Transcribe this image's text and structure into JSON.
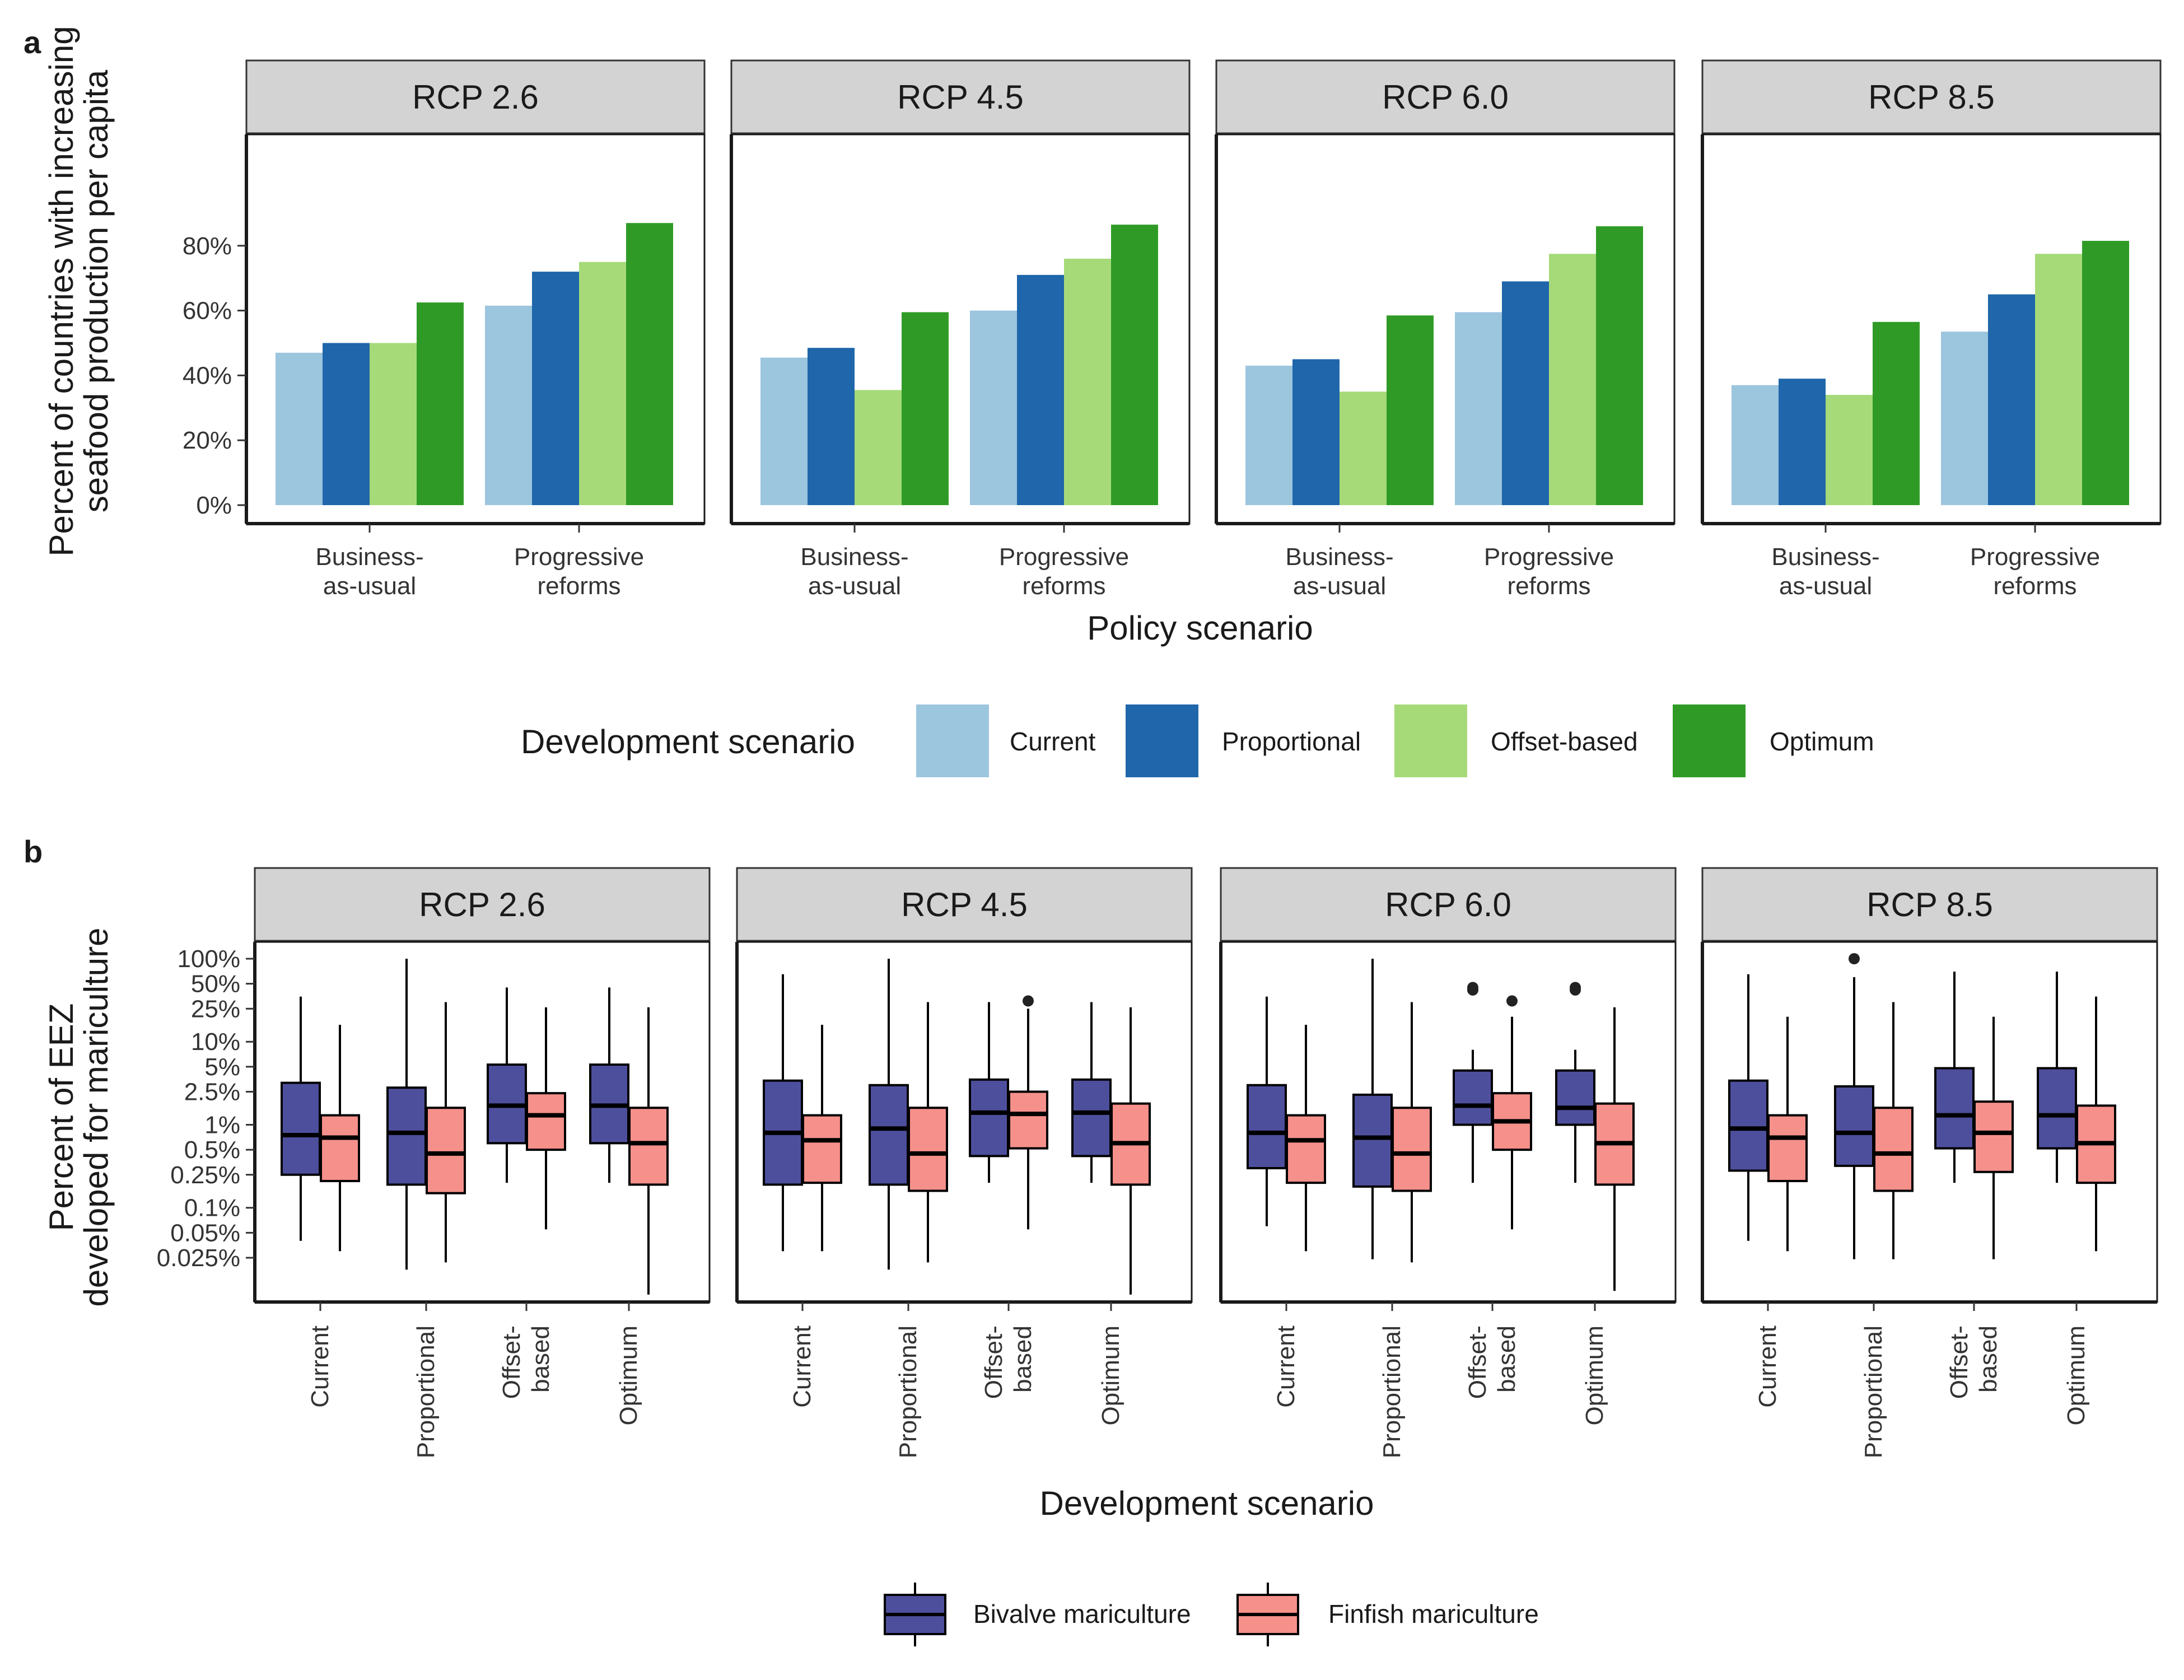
{
  "panel_a_letter": "a",
  "panel_b_letter": "b",
  "colors": {
    "strip_bg": "#d3d3d3",
    "Current": "#9cc5de",
    "Proportional": "#1f66aa",
    "Offset-based": "#a6da79",
    "Optimum": "#2f9b26",
    "bivalve": "#4e4f9c",
    "finfish": "#f5908b"
  },
  "chart_data": [
    {
      "type": "bar",
      "facets": [
        "RCP 2.6",
        "RCP 4.5",
        "RCP 6.0",
        "RCP 8.5"
      ],
      "categories": [
        "Business-\nas-usual",
        "Progressive\nreforms"
      ],
      "series_names": [
        "Current",
        "Proportional",
        "Offset-based",
        "Optimum"
      ],
      "values": {
        "RCP 2.6": {
          "Current": [
            47,
            61.5
          ],
          "Proportional": [
            50,
            72
          ],
          "Offset-based": [
            50,
            75
          ],
          "Optimum": [
            62.5,
            87
          ]
        },
        "RCP 4.5": {
          "Current": [
            45.5,
            60
          ],
          "Proportional": [
            48.5,
            71
          ],
          "Offset-based": [
            35.5,
            76
          ],
          "Optimum": [
            59.5,
            86.5
          ]
        },
        "RCP 6.0": {
          "Current": [
            43,
            59.5
          ],
          "Proportional": [
            45,
            69
          ],
          "Offset-based": [
            35,
            77.5
          ],
          "Optimum": [
            58.5,
            86
          ]
        },
        "RCP 8.5": {
          "Current": [
            37,
            53.5
          ],
          "Proportional": [
            39,
            65
          ],
          "Offset-based": [
            34,
            77.5
          ],
          "Optimum": [
            56.5,
            81.5
          ]
        }
      },
      "ylim": [
        0,
        100
      ],
      "yticks": [
        0,
        20,
        40,
        60,
        80
      ],
      "ytick_labels": [
        "0%",
        "20%",
        "40%",
        "60%",
        "80%"
      ],
      "xlabel": "Policy scenario",
      "ylabel": "Percent of countries with increasing\nseafood production per capita",
      "legend": {
        "title": "Development scenario",
        "position": "bottom",
        "entries": [
          "Current",
          "Proportional",
          "Offset-based",
          "Optimum"
        ]
      },
      "grid": false
    },
    {
      "type": "box",
      "facets": [
        "RCP 2.6",
        "RCP 4.5",
        "RCP 6.0",
        "RCP 8.5"
      ],
      "categories": [
        "Current",
        "Proportional",
        "Offset-\nbased",
        "Optimum"
      ],
      "y_scale": "log",
      "yticks": [
        100,
        50,
        25,
        10,
        5,
        2.5,
        1,
        0.5,
        0.25,
        0.1,
        0.05,
        0.025
      ],
      "ytick_labels": [
        "100%",
        "50%",
        "25%",
        "10%",
        "5%",
        "2.5%",
        "1%",
        "0.5%",
        "0.25%",
        "0.1%",
        "0.05%",
        "0.025%"
      ],
      "xlabel": "Development scenario",
      "ylabel": "Percent of EEZ\ndeveloped for mariculture",
      "legend": {
        "position": "bottom",
        "entries": [
          "Bivalve mariculture",
          "Finfish mariculture"
        ]
      },
      "series_keys": [
        "bivalve",
        "finfish"
      ],
      "boxes": {
        "RCP 2.6": {
          "bivalve": [
            {
              "low": 0.04,
              "q1": 0.25,
              "median": 0.75,
              "q3": 3.2,
              "high": 35,
              "outliers": []
            },
            {
              "low": 0.018,
              "q1": 0.19,
              "median": 0.8,
              "q3": 2.8,
              "high": 100,
              "outliers": []
            },
            {
              "low": 0.2,
              "q1": 0.6,
              "median": 1.7,
              "q3": 5.3,
              "high": 45,
              "outliers": []
            },
            {
              "low": 0.2,
              "q1": 0.6,
              "median": 1.7,
              "q3": 5.3,
              "high": 45,
              "outliers": []
            }
          ],
          "finfish": [
            {
              "low": 0.03,
              "q1": 0.21,
              "median": 0.7,
              "q3": 1.3,
              "high": 16,
              "outliers": []
            },
            {
              "low": 0.022,
              "q1": 0.15,
              "median": 0.45,
              "q3": 1.6,
              "high": 30,
              "outliers": []
            },
            {
              "low": 0.055,
              "q1": 0.5,
              "median": 1.3,
              "q3": 2.4,
              "high": 26,
              "outliers": []
            },
            {
              "low": 0.009,
              "q1": 0.19,
              "median": 0.6,
              "q3": 1.6,
              "high": 26,
              "outliers": []
            }
          ]
        },
        "RCP 4.5": {
          "bivalve": [
            {
              "low": 0.03,
              "q1": 0.19,
              "median": 0.8,
              "q3": 3.4,
              "high": 65,
              "outliers": []
            },
            {
              "low": 0.018,
              "q1": 0.19,
              "median": 0.9,
              "q3": 3.0,
              "high": 100,
              "outliers": []
            },
            {
              "low": 0.2,
              "q1": 0.42,
              "median": 1.4,
              "q3": 3.5,
              "high": 30,
              "outliers": []
            },
            {
              "low": 0.2,
              "q1": 0.42,
              "median": 1.4,
              "q3": 3.5,
              "high": 30,
              "outliers": []
            }
          ],
          "finfish": [
            {
              "low": 0.03,
              "q1": 0.2,
              "median": 0.65,
              "q3": 1.3,
              "high": 16,
              "outliers": []
            },
            {
              "low": 0.022,
              "q1": 0.16,
              "median": 0.45,
              "q3": 1.6,
              "high": 30,
              "outliers": []
            },
            {
              "low": 0.055,
              "q1": 0.52,
              "median": 1.35,
              "q3": 2.5,
              "high": 25,
              "outliers": [
                31
              ]
            },
            {
              "low": 0.009,
              "q1": 0.19,
              "median": 0.6,
              "q3": 1.8,
              "high": 26,
              "outliers": []
            }
          ]
        },
        "RCP 6.0": {
          "bivalve": [
            {
              "low": 0.06,
              "q1": 0.3,
              "median": 0.8,
              "q3": 3.0,
              "high": 35,
              "outliers": []
            },
            {
              "low": 0.024,
              "q1": 0.18,
              "median": 0.7,
              "q3": 2.3,
              "high": 100,
              "outliers": []
            },
            {
              "low": 0.2,
              "q1": 1.0,
              "median": 1.7,
              "q3": 4.5,
              "high": 8,
              "outliers": [
                42,
                45
              ]
            },
            {
              "low": 0.2,
              "q1": 1.0,
              "median": 1.6,
              "q3": 4.5,
              "high": 8,
              "outliers": [
                42,
                45
              ]
            }
          ],
          "finfish": [
            {
              "low": 0.03,
              "q1": 0.2,
              "median": 0.65,
              "q3": 1.3,
              "high": 16,
              "outliers": []
            },
            {
              "low": 0.022,
              "q1": 0.16,
              "median": 0.45,
              "q3": 1.6,
              "high": 30,
              "outliers": []
            },
            {
              "low": 0.055,
              "q1": 0.5,
              "median": 1.1,
              "q3": 2.4,
              "high": 20,
              "outliers": [
                31
              ]
            },
            {
              "low": 0.01,
              "q1": 0.19,
              "median": 0.6,
              "q3": 1.8,
              "high": 26,
              "outliers": []
            }
          ]
        },
        "RCP 8.5": {
          "bivalve": [
            {
              "low": 0.04,
              "q1": 0.28,
              "median": 0.9,
              "q3": 3.4,
              "high": 65,
              "outliers": []
            },
            {
              "low": 0.024,
              "q1": 0.32,
              "median": 0.8,
              "q3": 2.9,
              "high": 60,
              "outliers": [
                100
              ]
            },
            {
              "low": 0.2,
              "q1": 0.52,
              "median": 1.3,
              "q3": 4.8,
              "high": 70,
              "outliers": []
            },
            {
              "low": 0.2,
              "q1": 0.52,
              "median": 1.3,
              "q3": 4.8,
              "high": 70,
              "outliers": []
            }
          ],
          "finfish": [
            {
              "low": 0.03,
              "q1": 0.21,
              "median": 0.7,
              "q3": 1.3,
              "high": 20,
              "outliers": []
            },
            {
              "low": 0.024,
              "q1": 0.16,
              "median": 0.45,
              "q3": 1.6,
              "high": 30,
              "outliers": []
            },
            {
              "low": 0.024,
              "q1": 0.27,
              "median": 0.8,
              "q3": 1.9,
              "high": 20,
              "outliers": []
            },
            {
              "low": 0.03,
              "q1": 0.2,
              "median": 0.6,
              "q3": 1.7,
              "high": 35,
              "outliers": []
            }
          ]
        }
      },
      "grid": false
    }
  ]
}
